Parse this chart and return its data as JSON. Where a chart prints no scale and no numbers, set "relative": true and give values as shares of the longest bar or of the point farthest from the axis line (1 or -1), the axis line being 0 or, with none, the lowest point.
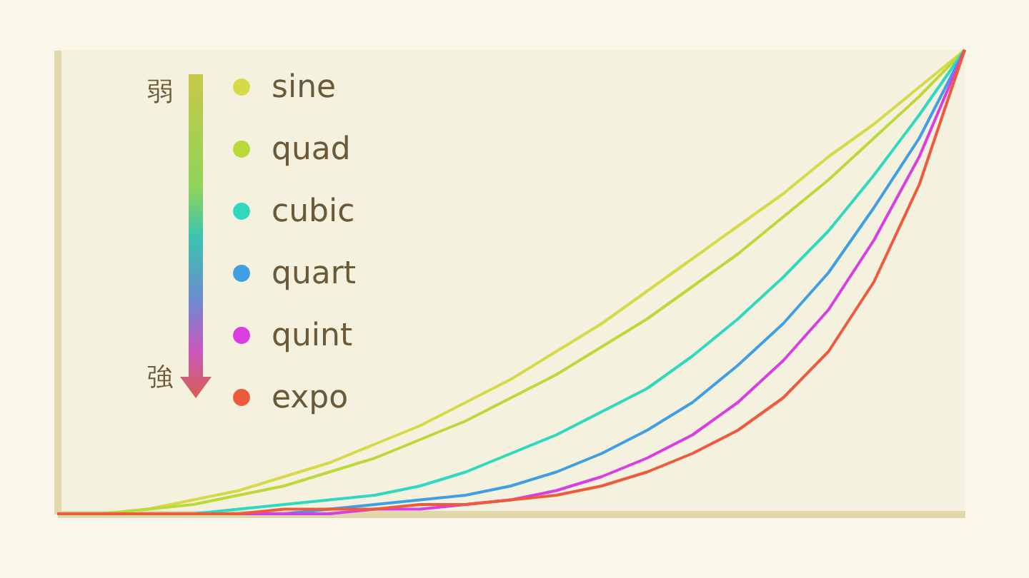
{
  "chart_data": {
    "type": "line",
    "relative": true,
    "categories": [
      null,
      null,
      null,
      null,
      null,
      null,
      null,
      null,
      null,
      null,
      null,
      null,
      null,
      null,
      null,
      null,
      null,
      null,
      null,
      null,
      null
    ],
    "series": [
      {
        "name": "sine",
        "color": "#d6da48",
        "values": [
          0,
          0,
          0.01,
          0.03,
          0.05,
          0.08,
          0.11,
          0.15,
          0.19,
          0.24,
          0.29,
          0.35,
          0.41,
          0.48,
          0.55,
          0.62,
          0.69,
          0.77,
          0.84,
          0.92,
          1
        ]
      },
      {
        "name": "quad",
        "color": "#bcd93a",
        "values": [
          0,
          0,
          0.01,
          0.02,
          0.04,
          0.06,
          0.09,
          0.12,
          0.16,
          0.2,
          0.25,
          0.3,
          0.36,
          0.42,
          0.49,
          0.56,
          0.64,
          0.72,
          0.81,
          0.9,
          1
        ]
      },
      {
        "name": "cubic",
        "color": "#2fd8bf",
        "values": [
          null,
          null,
          0,
          0,
          0.01,
          0.02,
          0.03,
          0.04,
          0.06,
          0.09,
          0.13,
          0.17,
          0.22,
          0.27,
          0.34,
          0.42,
          0.51,
          0.61,
          0.73,
          0.86,
          1
        ]
      },
      {
        "name": "quart",
        "color": "#409fe2",
        "values": [
          null,
          null,
          null,
          0,
          0,
          0,
          0.01,
          0.02,
          0.03,
          0.04,
          0.06,
          0.09,
          0.13,
          0.18,
          0.24,
          0.32,
          0.41,
          0.52,
          0.66,
          0.81,
          1
        ]
      },
      {
        "name": "quint",
        "color": "#d83ee0",
        "values": [
          null,
          null,
          null,
          0,
          0,
          0,
          0,
          0.01,
          0.01,
          0.02,
          0.03,
          0.05,
          0.08,
          0.12,
          0.17,
          0.24,
          0.33,
          0.44,
          0.59,
          0.77,
          1
        ]
      },
      {
        "name": "expo",
        "color": "#ee5a3c",
        "values": [
          0,
          0,
          0,
          0,
          0,
          0.01,
          0.01,
          0.01,
          0.02,
          0.02,
          0.03,
          0.04,
          0.06,
          0.09,
          0.13,
          0.18,
          0.25,
          0.35,
          0.5,
          0.71,
          1
        ]
      }
    ],
    "annotations": [
      "弱",
      "強"
    ],
    "legend": "top left",
    "marker": "none",
    "line_style": "solid",
    "grid": false,
    "tick_labels": false
  }
}
